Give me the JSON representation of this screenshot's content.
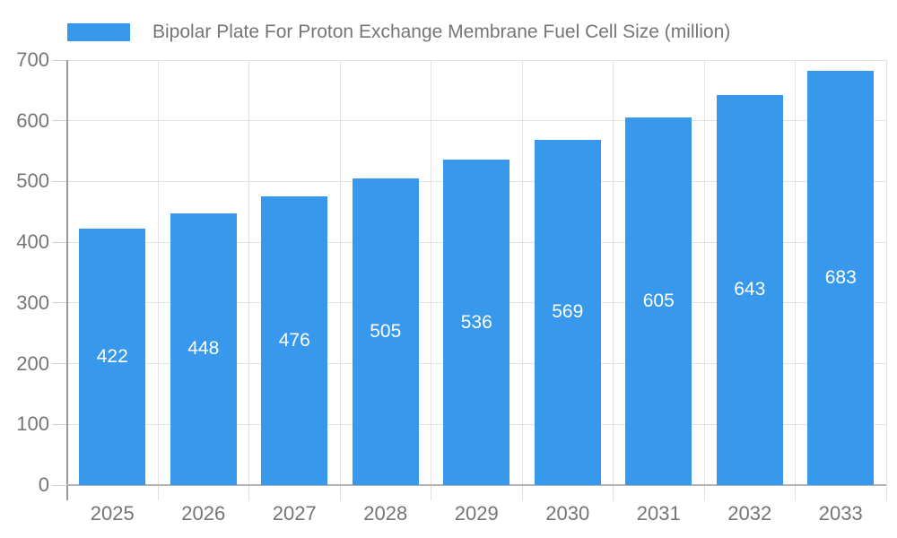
{
  "legend": {
    "label": "Bipolar Plate For Proton Exchange Membrane Fuel Cell Size (million)"
  },
  "chart_data": {
    "type": "bar",
    "title": "",
    "categories": [
      "2025",
      "2026",
      "2027",
      "2028",
      "2029",
      "2030",
      "2031",
      "2032",
      "2033"
    ],
    "series": [
      {
        "name": "Bipolar Plate For Proton Exchange Membrane Fuel Cell Size (million)",
        "values": [
          422,
          448,
          476,
          505,
          536,
          569,
          605,
          643,
          683
        ]
      }
    ],
    "yticks": [
      0,
      100,
      200,
      300,
      400,
      500,
      600,
      700
    ],
    "ylim": [
      0,
      700
    ],
    "grid": true,
    "legend_position": "top-left",
    "bar_color": "#3899EC",
    "bar_label_color": "#ffffff",
    "axis_text_color": "#757575"
  }
}
